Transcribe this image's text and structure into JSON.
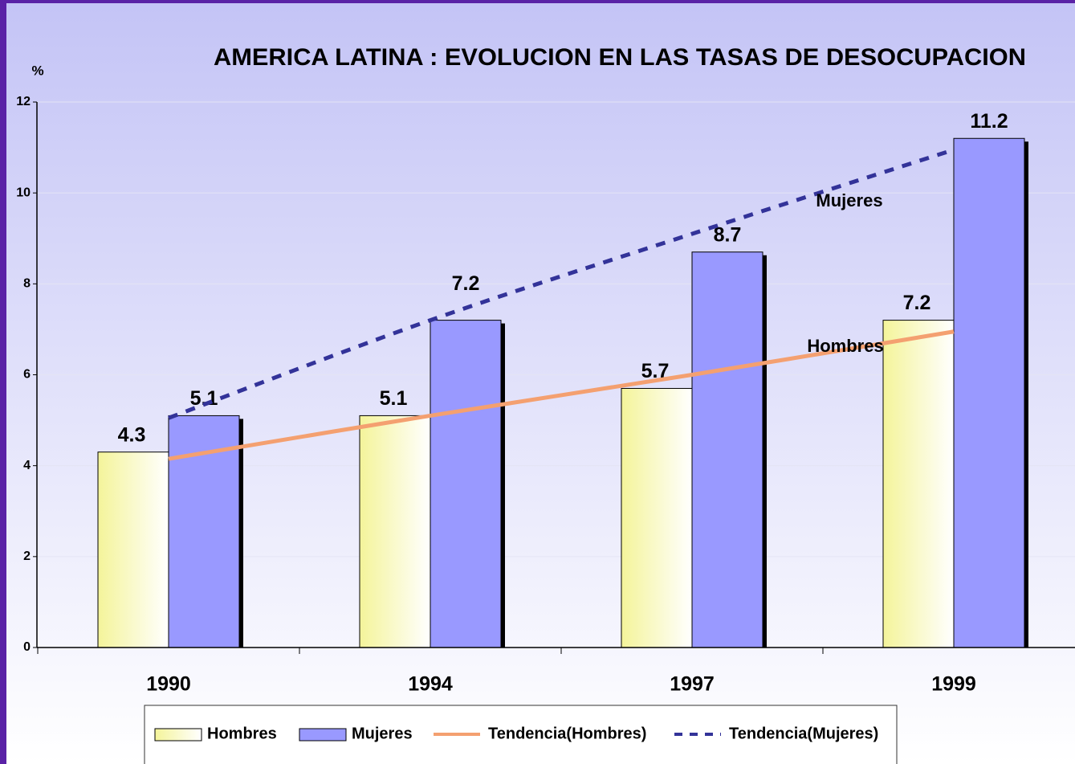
{
  "chart_data": {
    "type": "bar",
    "title": "AMERICA LATINA : EVOLUCION EN LAS TASAS DE DESOCUPACION",
    "y_label": "%",
    "categories": [
      "1990",
      "1994",
      "1997",
      "1999"
    ],
    "series": [
      {
        "name": "Hombres",
        "type": "bar",
        "color": "#ffffc0",
        "values": [
          4.3,
          5.1,
          5.7,
          7.2
        ]
      },
      {
        "name": "Mujeres",
        "type": "bar",
        "color": "#9999ff",
        "values": [
          5.1,
          7.2,
          8.7,
          11.2
        ]
      },
      {
        "name": "Tendencia(Hombres)",
        "type": "line",
        "color": "#f4a070",
        "dash": false,
        "values": [
          4.15,
          5.1,
          6.0,
          6.95
        ]
      },
      {
        "name": "Tendencia(Mujeres)",
        "type": "line",
        "color": "#333399",
        "dash": true,
        "values": [
          5.05,
          7.2,
          9.1,
          10.95
        ]
      }
    ],
    "annotations": [
      "Mujeres",
      "Hombres"
    ],
    "ylim": [
      0,
      12
    ],
    "yticks": [
      0,
      2,
      4,
      6,
      8,
      10,
      12
    ],
    "grid": true,
    "legend": "bottom"
  }
}
